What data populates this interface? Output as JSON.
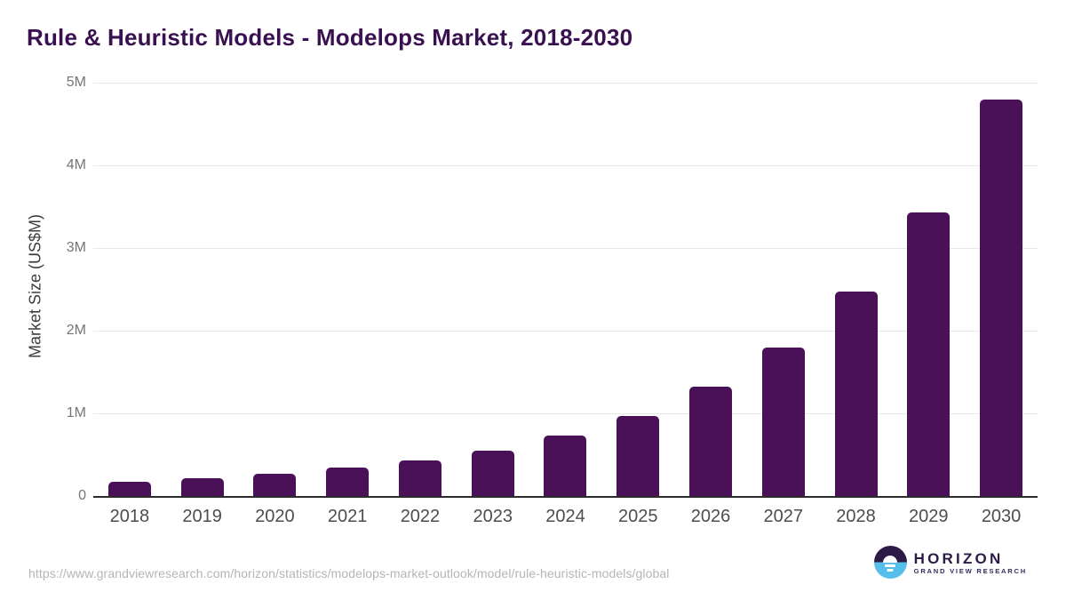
{
  "title": "Rule & Heuristic Models - Modelops Market, 2018-2030",
  "chart_data": {
    "type": "bar",
    "title": "Rule & Heuristic Models - Modelops Market, 2018-2030",
    "categories": [
      "2018",
      "2019",
      "2020",
      "2021",
      "2022",
      "2023",
      "2024",
      "2025",
      "2026",
      "2027",
      "2028",
      "2029",
      "2030"
    ],
    "values": [
      0.17,
      0.21,
      0.27,
      0.34,
      0.43,
      0.55,
      0.73,
      0.97,
      1.32,
      1.8,
      2.47,
      3.43,
      4.8
    ],
    "xlabel": "",
    "ylabel": "Market Size (US$M)",
    "ylim": [
      0,
      5
    ],
    "yticks": [
      {
        "label": "5M",
        "value": 5
      },
      {
        "label": "4M",
        "value": 4
      },
      {
        "label": "3M",
        "value": 3
      },
      {
        "label": "2M",
        "value": 2
      },
      {
        "label": "1M",
        "value": 1
      },
      {
        "label": "0",
        "value": 0
      }
    ],
    "grid": true,
    "legend": "none",
    "bar_color": "#4A1158"
  },
  "colors": {
    "title": "#3A1150",
    "bar": "#4A1158",
    "gridline": "#e8e8e8",
    "axis_line": "#2b2b2b",
    "tick_label": "#757575",
    "x_label": "#4d4d4d",
    "url_text": "#b5b5b5",
    "logo_purple": "#2E1A47",
    "logo_blue": "#55BFEA"
  },
  "footer": {
    "source_url": "https://www.grandviewresearch.com/horizon/statistics/modelops-market-outlook/model/rule-heuristic-models/global",
    "logo": {
      "brand": "HORIZON",
      "tagline": "GRAND VIEW RESEARCH"
    }
  }
}
